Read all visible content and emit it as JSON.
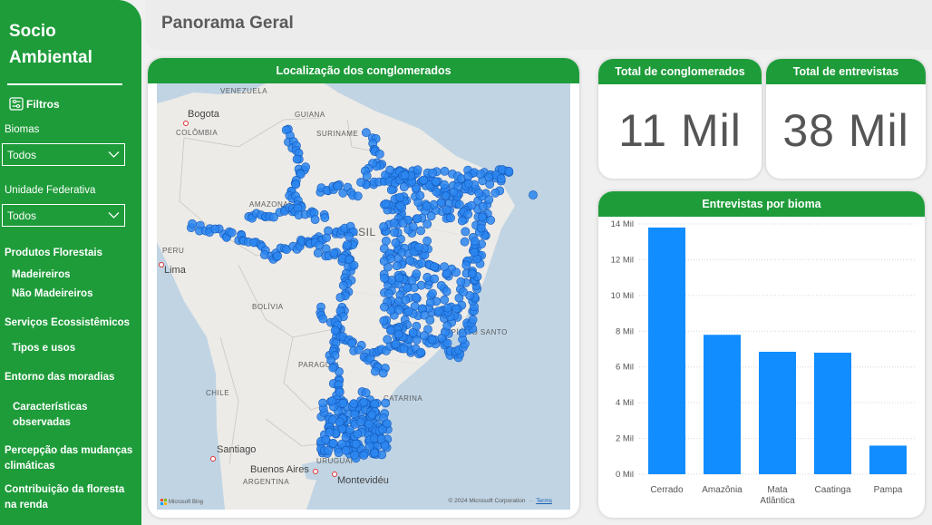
{
  "sidebar": {
    "brand_line1": "Socio",
    "brand_line2": "Ambiental",
    "filters_label": "Filtros",
    "biomas_label": "Biomas",
    "biomas_value": "Todos",
    "uf_label": "Unidade Federativa",
    "uf_value": "Todos",
    "nav": {
      "produtos": "Produtos Florestais",
      "madeireiros": "Madeireiros",
      "nao_madeireiros": "Não Madeireiros",
      "servicos": "Serviços Ecossistêmicos",
      "tipos": "Tipos e usos",
      "entorno": "Entorno das moradias",
      "caracteristicas_1": "Características",
      "caracteristicas_2": "observadas",
      "percepcao_1": "Percepção das mudanças",
      "percepcao_2": "climáticas",
      "contribuicao_1": "Contribuição da floresta",
      "contribuicao_2": "na renda"
    }
  },
  "header": {
    "title": "Panorama Geral"
  },
  "map": {
    "title": "Localização dos conglomerados",
    "labels": {
      "venezuela": "VENEZUELA",
      "guiana": "GUIANA",
      "suriname": "SURINAME",
      "colombia": "COLÔMBIA",
      "amazonas": "AMAZONAS",
      "brasil": "BRASIL",
      "peru": "PERU",
      "bolivia": "BOLÍVIA",
      "paraguai": "PARAGUAI",
      "chile": "CHILE",
      "uruguai": "URUGUAI",
      "argentina": "ARGENTINA",
      "espirito_santo": "ESPÍRITO SANTO",
      "catarina": "CATARINA"
    },
    "cities": {
      "bogota": "Bogota",
      "lima": "Lima",
      "santiago": "Santiago",
      "buenos_aires": "Buenos Aires",
      "montevideu": "Montevidéu"
    },
    "attribution_brand": "Microsoft Bing",
    "attribution_copyright": "© 2024 Microsoft Corporation",
    "attribution_terms": "Terms",
    "point_color": "#2b86f0"
  },
  "kpis": {
    "conglomerados_title": "Total de conglomerados",
    "conglomerados_value": "11 Mil",
    "entrevistas_title": "Total de entrevistas",
    "entrevistas_value": "38 Mil"
  },
  "bar_card": {
    "title": "Entrevistas por bioma"
  },
  "chart_data": {
    "type": "bar",
    "title": "Entrevistas por bioma",
    "categories": [
      "Cerrado",
      "Amazônia",
      "Mata Atlântica",
      "Caatinga",
      "Pampa"
    ],
    "category_lines": [
      [
        "Cerrado"
      ],
      [
        "Amazônia"
      ],
      [
        "Mata",
        "Atlântica"
      ],
      [
        "Caatinga"
      ],
      [
        "Pampa"
      ]
    ],
    "values": [
      13800,
      7800,
      6850,
      6800,
      1600
    ],
    "ylim": [
      0,
      14000
    ],
    "yticks": [
      0,
      2000,
      4000,
      6000,
      8000,
      10000,
      12000,
      14000
    ],
    "ytick_labels": [
      "0 Mil",
      "2 Mil",
      "4 Mil",
      "6 Mil",
      "8 Mil",
      "10 Mil",
      "12 Mil",
      "14 Mil"
    ],
    "color": "#118dff",
    "grid": true,
    "xlabel": "",
    "ylabel": ""
  },
  "colors": {
    "accent_green": "#1e9c3a",
    "bar_blue": "#118dff"
  }
}
